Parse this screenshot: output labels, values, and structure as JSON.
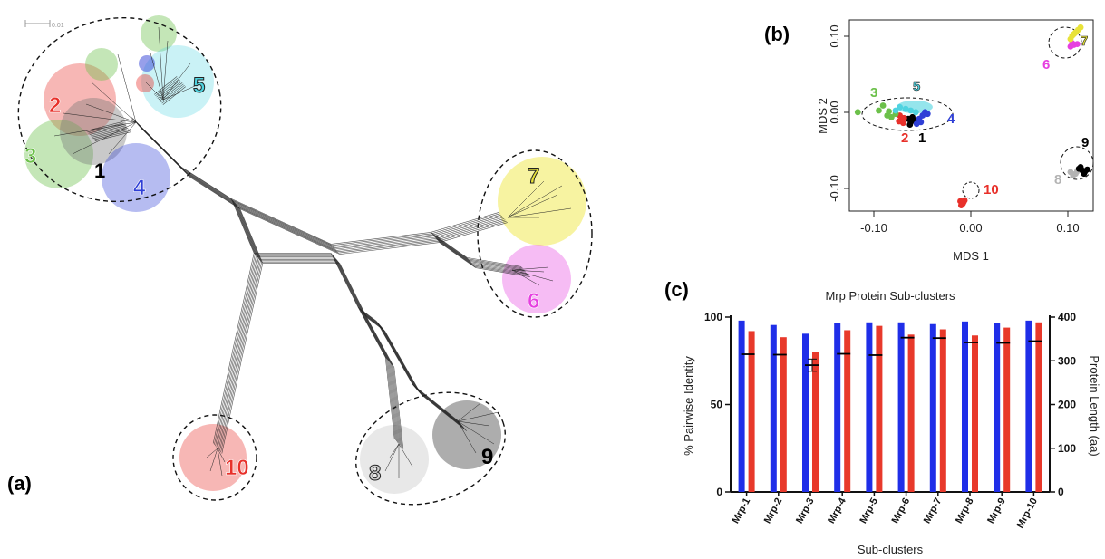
{
  "panel_labels": {
    "a": "(a)",
    "b": "(b)",
    "c": "(c)"
  },
  "network": {
    "scale_bar_label": "0.01",
    "clusters": [
      {
        "label": "1",
        "color": "#000000"
      },
      {
        "label": "2",
        "color": "#e8302a"
      },
      {
        "label": "3",
        "color": "#6cc04a"
      },
      {
        "label": "4",
        "color": "#2f3fd6"
      },
      {
        "label": "5",
        "color": "#4fd3e0"
      },
      {
        "label": "6",
        "color": "#e63fe0"
      },
      {
        "label": "7",
        "color": "#e8e238"
      },
      {
        "label": "8",
        "color": "#c8c8c8"
      },
      {
        "label": "9",
        "color": "#000000"
      },
      {
        "label": "10",
        "color": "#e8302a"
      }
    ]
  },
  "mds": {
    "xlabel": "MDS 1",
    "ylabel": "MDS 2",
    "xticks": [
      "-0.10",
      "0.00",
      "0.10"
    ],
    "yticks": [
      "0.10",
      "0.00",
      "-0.10"
    ],
    "labels": [
      "3",
      "5",
      "4",
      "2",
      "1",
      "7",
      "6",
      "9",
      "8",
      "10"
    ]
  },
  "colors": {
    "identity": "#1f2ee8",
    "length": "#e8392b"
  },
  "chart_data": [
    {
      "type": "scatter",
      "title": "",
      "xlabel": "MDS 1",
      "ylabel": "MDS 2",
      "xlim": [
        -0.145,
        0.145
      ],
      "ylim": [
        -0.115,
        0.115
      ],
      "grid": false,
      "series": [
        {
          "cluster": "1",
          "color": "#000000",
          "points": [
            [
              -0.075,
              -0.004
            ],
            [
              -0.072,
              -0.008
            ],
            [
              -0.07,
              -0.002
            ],
            [
              -0.068,
              -0.006
            ],
            [
              -0.073,
              -0.011
            ]
          ]
        },
        {
          "cluster": "2",
          "color": "#e8302a",
          "points": [
            [
              -0.085,
              0.0
            ],
            [
              -0.083,
              -0.005
            ],
            [
              -0.08,
              -0.003
            ],
            [
              -0.081,
              -0.009
            ],
            [
              -0.086,
              -0.007
            ]
          ]
        },
        {
          "cluster": "3",
          "color": "#6cc04a",
          "points": [
            [
              -0.135,
              0.004
            ],
            [
              -0.11,
              0.006
            ],
            [
              -0.105,
              0.012
            ],
            [
              -0.1,
              0.0
            ],
            [
              -0.098,
              0.005
            ],
            [
              -0.095,
              -0.002
            ],
            [
              -0.09,
              0.002
            ]
          ]
        },
        {
          "cluster": "4",
          "color": "#2f3fd6",
          "points": [
            [
              -0.062,
              -0.004
            ],
            [
              -0.058,
              0.0
            ],
            [
              -0.055,
              0.004
            ],
            [
              -0.06,
              -0.008
            ],
            [
              -0.065,
              -0.01
            ],
            [
              -0.052,
              0.002
            ]
          ]
        },
        {
          "cluster": "5",
          "color": "#4fd3e0",
          "points": [
            [
              -0.09,
              0.006
            ],
            [
              -0.085,
              0.01
            ],
            [
              -0.078,
              0.008
            ],
            [
              -0.072,
              0.006
            ],
            [
              -0.066,
              0.004
            ]
          ]
        },
        {
          "cluster": "6",
          "color": "#e63fe0",
          "points": [
            [
              0.118,
              0.083
            ],
            [
              0.122,
              0.085
            ],
            [
              0.126,
              0.086
            ],
            [
              0.12,
              0.087
            ]
          ]
        },
        {
          "cluster": "7",
          "color": "#e8e238",
          "points": [
            [
              0.118,
              0.092
            ],
            [
              0.122,
              0.098
            ],
            [
              0.127,
              0.103
            ],
            [
              0.13,
              0.106
            ],
            [
              0.124,
              0.1
            ],
            [
              0.12,
              0.096
            ]
          ]
        },
        {
          "cluster": "8",
          "color": "#b3b3b3",
          "points": [
            [
              0.118,
              -0.068
            ],
            [
              0.121,
              -0.072
            ],
            [
              0.124,
              -0.07
            ],
            [
              0.126,
              -0.067
            ]
          ]
        },
        {
          "cluster": "9",
          "color": "#000000",
          "points": [
            [
              0.128,
              -0.064
            ],
            [
              0.132,
              -0.066
            ],
            [
              0.135,
              -0.068
            ],
            [
              0.138,
              -0.065
            ],
            [
              0.134,
              -0.07
            ],
            [
              0.13,
              -0.062
            ]
          ]
        },
        {
          "cluster": "10",
          "color": "#e8302a",
          "points": [
            [
              -0.013,
              -0.103
            ],
            [
              -0.01,
              -0.106
            ],
            [
              -0.008,
              -0.102
            ],
            [
              -0.012,
              -0.108
            ],
            [
              -0.009,
              -0.104
            ]
          ]
        }
      ]
    },
    {
      "type": "bar",
      "title": "Mrp Protein Sub-clusters",
      "xlabel": "Sub-clusters",
      "ylabel": "% Pairwise Identity",
      "y2label": "Protein Length (aa)",
      "ylim": [
        0,
        100
      ],
      "y2lim": [
        0,
        400
      ],
      "yticks": [
        0,
        50,
        100
      ],
      "y2ticks": [
        0,
        100,
        200,
        300,
        400
      ],
      "categories": [
        "Mrp-1",
        "Mrp-2",
        "Mrp-3",
        "Mrp-4",
        "Mrp-5",
        "Mrp-6",
        "Mrp-7",
        "Mrp-8",
        "Mrp-9",
        "Mrp-10"
      ],
      "series": [
        {
          "color": "#1f2ee8",
          "axis": "left",
          "values": [
            98,
            95.5,
            90.5,
            96.5,
            97,
            97,
            96,
            97.5,
            96.5,
            98
          ]
        },
        {
          "color": "#e8392b",
          "axis": "right",
          "values": [
            92,
            88.5,
            80,
            92.5,
            95,
            90,
            93,
            89.5,
            94,
            97
          ]
        }
      ],
      "length_marker": {
        "color": "#000000",
        "axis": "right",
        "values": [
          315,
          314,
          290,
          316,
          313,
          353,
          352,
          342,
          341,
          345
        ],
        "error_bars": [
          0,
          0,
          14,
          0,
          0,
          0,
          0,
          0,
          0,
          0
        ]
      }
    }
  ]
}
